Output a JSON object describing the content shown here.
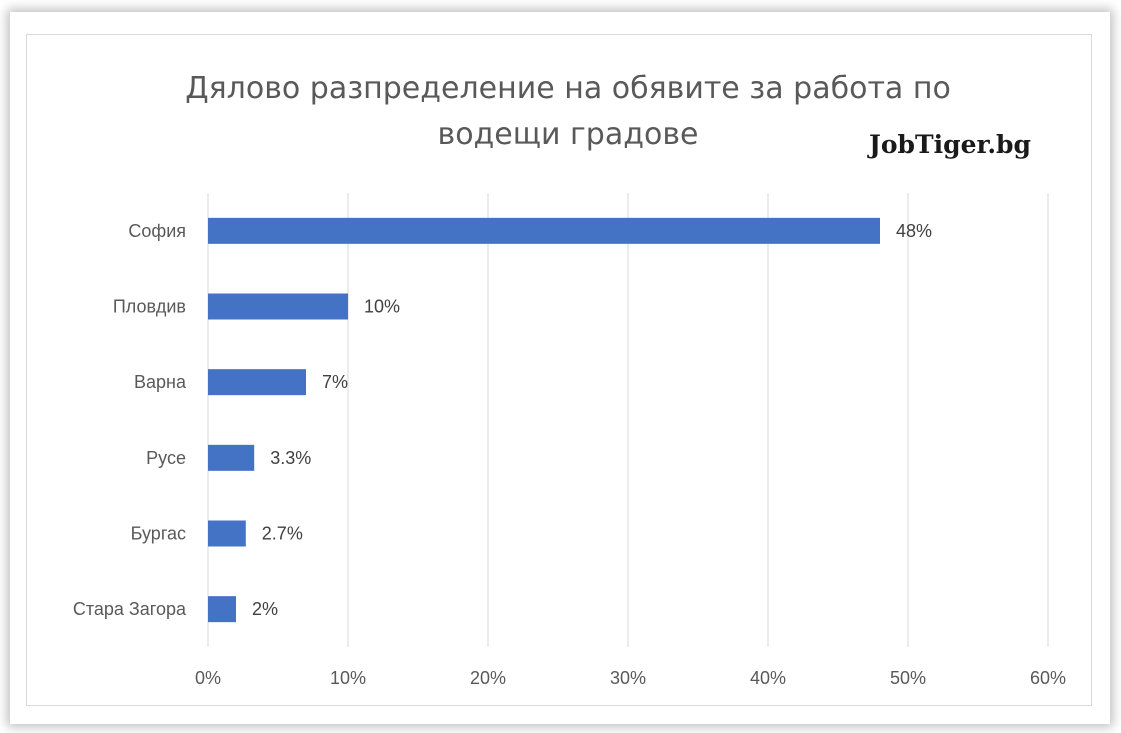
{
  "chart_data": {
    "type": "bar",
    "orientation": "horizontal",
    "title": "Дялово разпределение на обявите за работа по водещи градове",
    "title_lines": [
      "Дялово разпределение на обявите за работа по",
      "водещи градове"
    ],
    "watermark": "JobTiger.bg",
    "categories": [
      "София",
      "Пловдив",
      "Варна",
      "Русе",
      "Бургас",
      "Стара Загора"
    ],
    "values": [
      48,
      10,
      7,
      3.3,
      2.7,
      2
    ],
    "data_labels": [
      "48%",
      "10%",
      "7%",
      "3.3%",
      "2.7%",
      "2%"
    ],
    "xlim": [
      0,
      60
    ],
    "x_ticks": [
      0,
      10,
      20,
      30,
      40,
      50,
      60
    ],
    "x_tick_labels": [
      "0%",
      "10%",
      "20%",
      "30%",
      "40%",
      "50%",
      "60%"
    ],
    "grid": "vertical",
    "legend": "none",
    "bar_color": "#4472c4",
    "grid_color": "#d9d9d9",
    "text_color": "#595959"
  }
}
